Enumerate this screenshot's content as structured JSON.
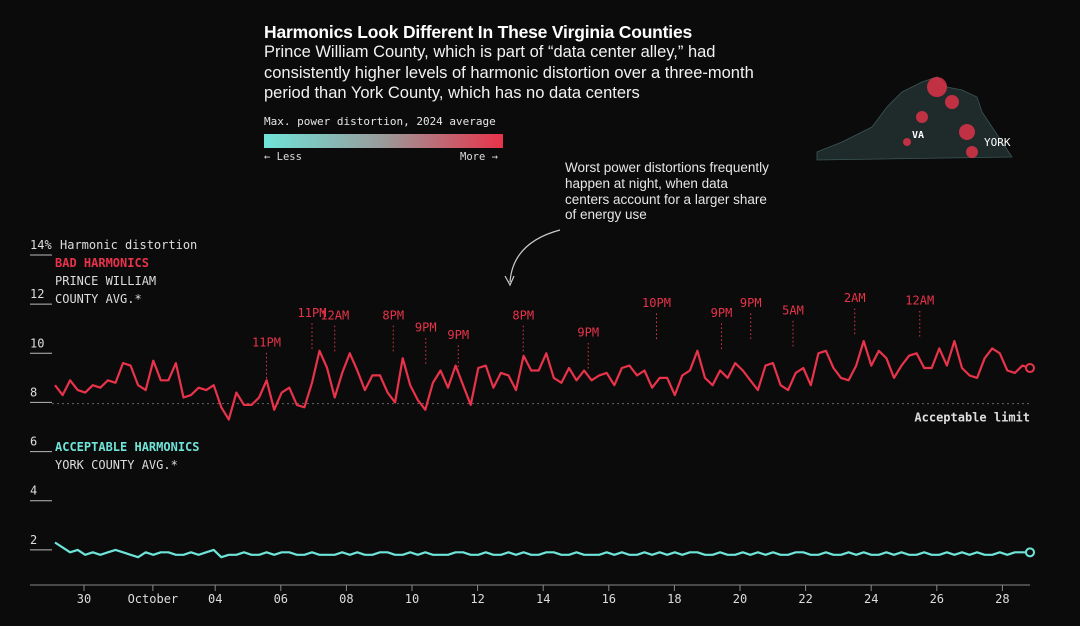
{
  "header": {
    "title": "Harmonics Look Different In These Virginia Counties",
    "subtitle": "Prince William County, which is part of “data center alley,” had consistently higher levels of harmonic distortion over a three-month period than York County, which has no data centers"
  },
  "legend": {
    "title": "Max. power distortion, 2024 average",
    "less": "← Less",
    "more": "More →",
    "color_low": "#6fe4d9",
    "color_high": "#e8334a"
  },
  "map": {
    "va_label": "VA",
    "york_label": "YORK"
  },
  "annotation": {
    "text": "Worst power distortions frequently happen at night, when data centers account for a larger share of energy use"
  },
  "chart_data": {
    "type": "line",
    "y_axis_label": "Harmonic distortion",
    "ylim": [
      0,
      14
    ],
    "y_ticks": [
      "14%",
      "12",
      "10",
      "8",
      "6",
      "4",
      "2"
    ],
    "x_ticks": [
      "30",
      "October",
      "04",
      "06",
      "08",
      "10",
      "12",
      "14",
      "16",
      "18",
      "20",
      "22",
      "24",
      "26",
      "28"
    ],
    "threshold": {
      "value": 7.95,
      "label": "Acceptable limit"
    },
    "series": [
      {
        "name": "PRINCE WILLIAM COUNTY AVG.*",
        "group_label": "BAD HARMONICS",
        "label_lines": [
          "PRINCE WILLIAM",
          "COUNTY AVG.*"
        ],
        "color": "#e8334a",
        "values": [
          8.7,
          8.3,
          8.9,
          8.5,
          8.4,
          8.7,
          8.6,
          8.9,
          8.8,
          9.6,
          9.5,
          8.7,
          8.5,
          9.7,
          8.9,
          8.9,
          9.6,
          8.2,
          8.3,
          8.6,
          8.5,
          8.7,
          7.8,
          7.3,
          8.4,
          7.9,
          7.9,
          8.2,
          8.9,
          7.7,
          8.4,
          8.6,
          7.9,
          7.8,
          8.8,
          10.1,
          9.4,
          8.2,
          9.2,
          10.0,
          9.3,
          8.5,
          9.1,
          9.1,
          8.4,
          8.0,
          9.8,
          8.7,
          8.1,
          7.7,
          8.8,
          9.3,
          8.6,
          9.5,
          8.7,
          7.9,
          9.4,
          9.5,
          8.6,
          9.2,
          9.1,
          8.5,
          9.9,
          9.3,
          9.3,
          10.0,
          9.0,
          8.8,
          9.4,
          8.9,
          9.3,
          8.9,
          9.1,
          9.2,
          8.7,
          9.4,
          9.5,
          9.1,
          9.3,
          8.6,
          9.0,
          9.0,
          8.3,
          9.1,
          9.3,
          10.1,
          9.0,
          8.7,
          9.3,
          9.0,
          9.6,
          9.3,
          8.9,
          8.5,
          9.5,
          9.6,
          8.7,
          8.5,
          9.2,
          9.4,
          8.7,
          10.0,
          10.1,
          9.4,
          9.0,
          8.9,
          9.5,
          10.5,
          9.5,
          10.1,
          9.8,
          9.0,
          9.5,
          9.9,
          10.0,
          9.4,
          9.4,
          10.2,
          9.5,
          10.5,
          9.4,
          9.1,
          9.0,
          9.8,
          10.2,
          10.0,
          9.3,
          9.2,
          9.5,
          9.4
        ],
        "marker_label_format": "{value}"
      },
      {
        "name": "YORK COUNTY AVG.*",
        "group_label": "ACCEPTABLE HARMONICS",
        "label_lines": [
          "YORK COUNTY AVG.*"
        ],
        "color": "#6fe4d9",
        "values": [
          2.3,
          2.1,
          1.9,
          2.0,
          1.8,
          1.9,
          1.8,
          1.9,
          2.0,
          1.9,
          1.8,
          1.7,
          1.9,
          1.8,
          1.9,
          1.9,
          1.8,
          1.8,
          1.9,
          1.8,
          1.9,
          2.0,
          1.7,
          1.8,
          1.8,
          1.9,
          1.8,
          1.8,
          1.9,
          1.8,
          1.9,
          1.9,
          1.8,
          1.8,
          1.9,
          1.8,
          1.8,
          1.8,
          1.9,
          1.8,
          1.9,
          1.8,
          1.8,
          1.9,
          1.9,
          1.8,
          1.8,
          1.9,
          1.8,
          1.9,
          1.8,
          1.8,
          1.8,
          1.9,
          1.9,
          1.8,
          1.8,
          1.9,
          1.8,
          1.8,
          1.9,
          1.8,
          1.9,
          1.8,
          1.8,
          1.9,
          1.9,
          1.8,
          1.8,
          1.9,
          1.8,
          1.8,
          1.8,
          1.9,
          1.8,
          1.9,
          1.8,
          1.8,
          1.9,
          1.8,
          1.9,
          1.8,
          1.9,
          1.8,
          1.9,
          1.9,
          1.8,
          1.8,
          1.9,
          1.8,
          1.8,
          1.9,
          1.8,
          1.9,
          1.8,
          1.9,
          1.8,
          1.8,
          1.9,
          1.9,
          1.8,
          1.8,
          1.9,
          1.8,
          1.8,
          1.9,
          1.8,
          1.9,
          1.8,
          1.8,
          1.9,
          1.8,
          1.9,
          1.8,
          1.8,
          1.9,
          1.8,
          1.8,
          1.9,
          1.8,
          1.9,
          1.8,
          1.9,
          1.8,
          1.8,
          1.9,
          1.8,
          1.9,
          1.9,
          1.9
        ]
      }
    ],
    "peak_labels": [
      {
        "label": "11PM",
        "day": 6.6,
        "value": 8.9
      },
      {
        "label": "11PM",
        "day": 8.0,
        "value": 10.1
      },
      {
        "label": "12AM",
        "day": 8.7,
        "value": 10.0
      },
      {
        "label": "8PM",
        "day": 10.5,
        "value": 10.0
      },
      {
        "label": "9PM",
        "day": 11.5,
        "value": 9.5
      },
      {
        "label": "9PM",
        "day": 12.5,
        "value": 9.2
      },
      {
        "label": "8PM",
        "day": 14.5,
        "value": 10.0
      },
      {
        "label": "9PM",
        "day": 16.5,
        "value": 9.3
      },
      {
        "label": "10PM",
        "day": 18.6,
        "value": 10.5
      },
      {
        "label": "9PM",
        "day": 20.6,
        "value": 10.1
      },
      {
        "label": "9PM",
        "day": 21.5,
        "value": 10.5
      },
      {
        "label": "5AM",
        "day": 22.8,
        "value": 10.2
      },
      {
        "label": "2AM",
        "day": 24.7,
        "value": 10.7
      },
      {
        "label": "12AM",
        "day": 26.7,
        "value": 10.6
      }
    ]
  }
}
